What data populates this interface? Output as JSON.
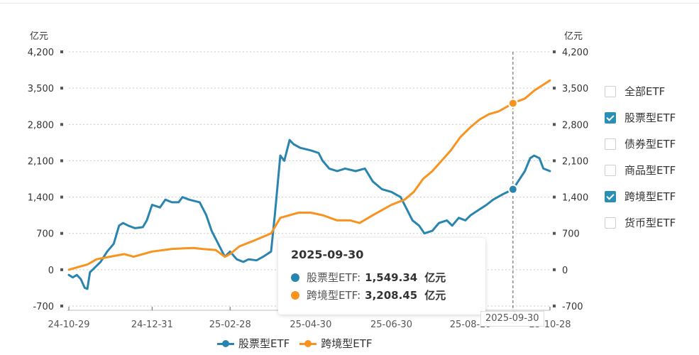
{
  "chart_data": {
    "type": "line",
    "y_unit_left": "亿元",
    "y_unit_right": "亿元",
    "ylim": [
      -700,
      4200
    ],
    "yticks": [
      "4,200",
      "3,500",
      "2,800",
      "2,100",
      "1,400",
      "700",
      "0",
      "-700"
    ],
    "ytick_values": [
      4200,
      3500,
      2800,
      2100,
      1400,
      700,
      0,
      -700
    ],
    "x_range": [
      "2024-10-29",
      "2025-10-28"
    ],
    "xtick_labels": [
      {
        "date": "2024-10-29",
        "label": "24-10-29"
      },
      {
        "date": "2024-12-31",
        "label": "24-12-31"
      },
      {
        "date": "2025-02-28",
        "label": "25-02-28"
      },
      {
        "date": "2025-04-30",
        "label": "25-04-30"
      },
      {
        "date": "2025-06-30",
        "label": "25-06-30"
      },
      {
        "date": "2025-08-29",
        "label": "25-08-29"
      },
      {
        "date": "2025-10-28",
        "label": "25-10-28"
      }
    ],
    "grid": true,
    "series": [
      {
        "name": "股票型ETF",
        "color": "#2a84b0",
        "points": [
          [
            "2024-10-29",
            -100
          ],
          [
            "2024-11-01",
            -150
          ],
          [
            "2024-11-04",
            -100
          ],
          [
            "2024-11-07",
            -180
          ],
          [
            "2024-11-10",
            -350
          ],
          [
            "2024-11-12",
            -370
          ],
          [
            "2024-11-14",
            -50
          ],
          [
            "2024-11-18",
            50
          ],
          [
            "2024-11-22",
            150
          ],
          [
            "2024-11-27",
            350
          ],
          [
            "2024-12-02",
            500
          ],
          [
            "2024-12-06",
            850
          ],
          [
            "2024-12-09",
            900
          ],
          [
            "2024-12-13",
            850
          ],
          [
            "2024-12-18",
            800
          ],
          [
            "2024-12-24",
            820
          ],
          [
            "2024-12-27",
            950
          ],
          [
            "2024-12-31",
            1250
          ],
          [
            "2025-01-06",
            1200
          ],
          [
            "2025-01-10",
            1350
          ],
          [
            "2025-01-15",
            1300
          ],
          [
            "2025-01-20",
            1300
          ],
          [
            "2025-01-23",
            1400
          ],
          [
            "2025-01-28",
            1350
          ],
          [
            "2025-02-05",
            1300
          ],
          [
            "2025-02-10",
            1050
          ],
          [
            "2025-02-14",
            750
          ],
          [
            "2025-02-19",
            500
          ],
          [
            "2025-02-24",
            250
          ],
          [
            "2025-02-28",
            350
          ],
          [
            "2025-03-05",
            200
          ],
          [
            "2025-03-10",
            150
          ],
          [
            "2025-03-14",
            200
          ],
          [
            "2025-03-20",
            180
          ],
          [
            "2025-03-25",
            250
          ],
          [
            "2025-03-31",
            350
          ],
          [
            "2025-04-03",
            1100
          ],
          [
            "2025-04-07",
            2200
          ],
          [
            "2025-04-10",
            2100
          ],
          [
            "2025-04-14",
            2500
          ],
          [
            "2025-04-17",
            2420
          ],
          [
            "2025-04-22",
            2350
          ],
          [
            "2025-04-30",
            2300
          ],
          [
            "2025-05-06",
            2250
          ],
          [
            "2025-05-09",
            2100
          ],
          [
            "2025-05-14",
            1950
          ],
          [
            "2025-05-20",
            1900
          ],
          [
            "2025-05-26",
            1950
          ],
          [
            "2025-06-03",
            1900
          ],
          [
            "2025-06-10",
            1950
          ],
          [
            "2025-06-16",
            1700
          ],
          [
            "2025-06-23",
            1550
          ],
          [
            "2025-06-30",
            1500
          ],
          [
            "2025-07-07",
            1400
          ],
          [
            "2025-07-11",
            1200
          ],
          [
            "2025-07-16",
            950
          ],
          [
            "2025-07-21",
            850
          ],
          [
            "2025-07-25",
            700
          ],
          [
            "2025-07-31",
            750
          ],
          [
            "2025-08-05",
            900
          ],
          [
            "2025-08-11",
            950
          ],
          [
            "2025-08-15",
            850
          ],
          [
            "2025-08-20",
            1000
          ],
          [
            "2025-08-25",
            950
          ],
          [
            "2025-08-29",
            1050
          ],
          [
            "2025-09-04",
            1150
          ],
          [
            "2025-09-10",
            1250
          ],
          [
            "2025-09-15",
            1350
          ],
          [
            "2025-09-22",
            1450
          ],
          [
            "2025-09-30",
            1549.34
          ],
          [
            "2025-10-09",
            1900
          ],
          [
            "2025-10-13",
            2150
          ],
          [
            "2025-10-16",
            2200
          ],
          [
            "2025-10-20",
            2150
          ],
          [
            "2025-10-23",
            1950
          ],
          [
            "2025-10-28",
            1900
          ]
        ]
      },
      {
        "name": "跨境型ETF",
        "color": "#f7931e",
        "points": [
          [
            "2024-10-29",
            0
          ],
          [
            "2024-11-05",
            50
          ],
          [
            "2024-11-12",
            100
          ],
          [
            "2024-11-19",
            200
          ],
          [
            "2024-11-29",
            250
          ],
          [
            "2024-12-10",
            300
          ],
          [
            "2024-12-17",
            250
          ],
          [
            "2024-12-31",
            350
          ],
          [
            "2025-01-15",
            400
          ],
          [
            "2025-01-31",
            420
          ],
          [
            "2025-02-07",
            400
          ],
          [
            "2025-02-17",
            380
          ],
          [
            "2025-02-24",
            250
          ],
          [
            "2025-02-28",
            300
          ],
          [
            "2025-03-07",
            450
          ],
          [
            "2025-03-17",
            550
          ],
          [
            "2025-03-31",
            700
          ],
          [
            "2025-04-07",
            1000
          ],
          [
            "2025-04-14",
            1050
          ],
          [
            "2025-04-21",
            1100
          ],
          [
            "2025-04-30",
            1100
          ],
          [
            "2025-05-09",
            1050
          ],
          [
            "2025-05-20",
            950
          ],
          [
            "2025-05-30",
            950
          ],
          [
            "2025-06-06",
            900
          ],
          [
            "2025-06-16",
            1050
          ],
          [
            "2025-06-23",
            1150
          ],
          [
            "2025-06-30",
            1250
          ],
          [
            "2025-07-10",
            1350
          ],
          [
            "2025-07-17",
            1500
          ],
          [
            "2025-07-24",
            1750
          ],
          [
            "2025-07-31",
            1900
          ],
          [
            "2025-08-07",
            2100
          ],
          [
            "2025-08-14",
            2300
          ],
          [
            "2025-08-21",
            2550
          ],
          [
            "2025-08-29",
            2750
          ],
          [
            "2025-09-05",
            2900
          ],
          [
            "2025-09-12",
            3000
          ],
          [
            "2025-09-19",
            3050
          ],
          [
            "2025-09-26",
            3150
          ],
          [
            "2025-09-30",
            3208.45
          ],
          [
            "2025-10-09",
            3300
          ],
          [
            "2025-10-16",
            3450
          ],
          [
            "2025-10-22",
            3550
          ],
          [
            "2025-10-28",
            3650
          ]
        ]
      }
    ],
    "highlight_date": "2025-09-30"
  },
  "legend_right": [
    {
      "label": "全部ETF",
      "checked": false
    },
    {
      "label": "股票型ETF",
      "checked": true
    },
    {
      "label": "债券型ETF",
      "checked": false
    },
    {
      "label": "商品型ETF",
      "checked": false
    },
    {
      "label": "跨境型ETF",
      "checked": true
    },
    {
      "label": "货币型ETF",
      "checked": false
    }
  ],
  "tooltip": {
    "date": "2025-09-30",
    "rows": [
      {
        "name": "股票型ETF:",
        "value": "1,549.34",
        "unit": "亿元",
        "color": "#2a84b0"
      },
      {
        "name": "跨境型ETF:",
        "value": "3,208.45",
        "unit": "亿元",
        "color": "#f7931e"
      }
    ]
  },
  "x_pointer_label": "2025-09-30",
  "bottom_legend": [
    {
      "label": "股票型ETF",
      "color": "#2a84b0"
    },
    {
      "label": "跨境型ETF",
      "color": "#f7931e"
    }
  ]
}
